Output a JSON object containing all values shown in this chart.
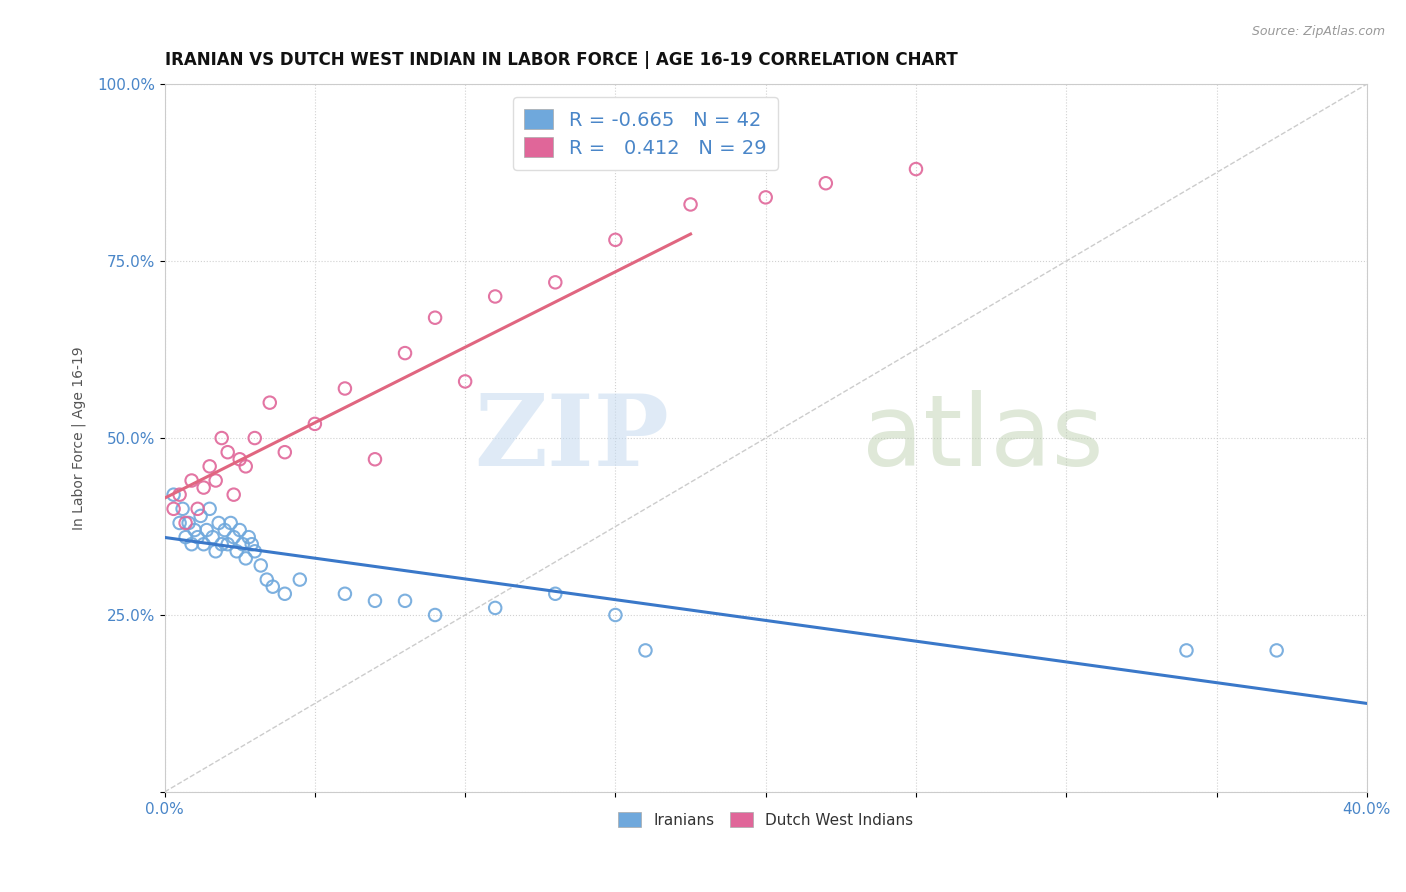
{
  "title": "IRANIAN VS DUTCH WEST INDIAN IN LABOR FORCE | AGE 16-19 CORRELATION CHART",
  "source": "Source: ZipAtlas.com",
  "ylabel": "In Labor Force | Age 16-19",
  "xlim": [
    0.0,
    0.4
  ],
  "ylim": [
    0.0,
    1.0
  ],
  "xticks": [
    0.0,
    0.05,
    0.1,
    0.15,
    0.2,
    0.25,
    0.3,
    0.35,
    0.4
  ],
  "yticks": [
    0.0,
    0.25,
    0.5,
    0.75,
    1.0
  ],
  "legend_r_iranian": "-0.665",
  "legend_n_iranian": "42",
  "legend_r_dutch": "0.412",
  "legend_n_dutch": "29",
  "blue_color": "#6fa8dc",
  "pink_color": "#e06699",
  "trend_blue": "#3a78c9",
  "trend_pink": "#e06680",
  "background_color": "#ffffff",
  "iranian_x": [
    0.003,
    0.005,
    0.006,
    0.007,
    0.008,
    0.009,
    0.01,
    0.011,
    0.012,
    0.013,
    0.014,
    0.015,
    0.016,
    0.017,
    0.018,
    0.019,
    0.02,
    0.021,
    0.022,
    0.023,
    0.024,
    0.025,
    0.026,
    0.027,
    0.028,
    0.029,
    0.03,
    0.032,
    0.034,
    0.036,
    0.04,
    0.045,
    0.06,
    0.07,
    0.08,
    0.09,
    0.11,
    0.13,
    0.15,
    0.16,
    0.34,
    0.37
  ],
  "iranian_y": [
    0.42,
    0.38,
    0.4,
    0.36,
    0.38,
    0.35,
    0.37,
    0.36,
    0.39,
    0.35,
    0.37,
    0.4,
    0.36,
    0.34,
    0.38,
    0.35,
    0.37,
    0.35,
    0.38,
    0.36,
    0.34,
    0.37,
    0.35,
    0.33,
    0.36,
    0.35,
    0.34,
    0.32,
    0.3,
    0.29,
    0.28,
    0.3,
    0.28,
    0.27,
    0.27,
    0.25,
    0.26,
    0.28,
    0.25,
    0.2,
    0.2,
    0.2
  ],
  "dutch_x": [
    0.003,
    0.005,
    0.007,
    0.009,
    0.011,
    0.013,
    0.015,
    0.017,
    0.019,
    0.021,
    0.023,
    0.025,
    0.027,
    0.03,
    0.035,
    0.04,
    0.05,
    0.06,
    0.07,
    0.08,
    0.09,
    0.1,
    0.11,
    0.13,
    0.15,
    0.175,
    0.2,
    0.22,
    0.25
  ],
  "dutch_y": [
    0.4,
    0.42,
    0.38,
    0.44,
    0.4,
    0.43,
    0.46,
    0.44,
    0.5,
    0.48,
    0.42,
    0.47,
    0.46,
    0.5,
    0.55,
    0.48,
    0.52,
    0.57,
    0.47,
    0.62,
    0.67,
    0.58,
    0.7,
    0.72,
    0.78,
    0.83,
    0.84,
    0.86,
    0.88
  ],
  "title_fontsize": 12,
  "axis_label_fontsize": 10,
  "tick_fontsize": 11,
  "legend_fontsize": 14
}
